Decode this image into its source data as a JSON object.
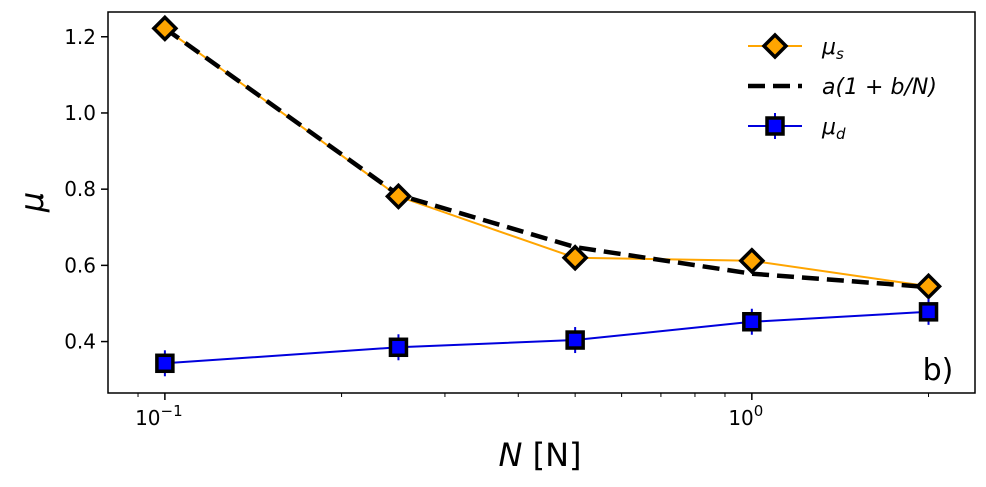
{
  "chart_data": {
    "type": "line",
    "x_scale": "log",
    "xlim": [
      0.08,
      2.4
    ],
    "ylim": [
      0.265,
      1.265
    ],
    "xlabel": "N [N]",
    "ylabel": "μ",
    "panel_label": "b)",
    "x_ticks": [
      {
        "value": 0.1,
        "base": "10",
        "exp": "−1"
      },
      {
        "value": 1.0,
        "base": "10",
        "exp": "0"
      }
    ],
    "y_ticks": [
      0.4,
      0.6,
      0.8,
      1.0,
      1.2
    ],
    "y_tick_labels": [
      "0.4",
      "0.6",
      "0.8",
      "1.0",
      "1.2"
    ],
    "legend_position": "top-right",
    "series": [
      {
        "name": "μs",
        "legend_label": "μ_s",
        "style": "line-diamond",
        "line_color": "#ffa500",
        "marker_fill": "#ffa500",
        "marker_edge": "#000000",
        "x": [
          0.1,
          0.25,
          0.5,
          1.0,
          2.0
        ],
        "y": [
          1.222,
          0.781,
          0.62,
          0.612,
          0.545
        ]
      },
      {
        "name": "a(1 + b/N)",
        "legend_label": "a(1 + b/N)",
        "style": "dashed",
        "line_color": "#000000",
        "x": [
          0.1,
          0.25,
          0.5,
          1.0,
          2.0
        ],
        "y": [
          1.222,
          0.785,
          0.648,
          0.578,
          0.543
        ]
      },
      {
        "name": "μd",
        "legend_label": "μ_d",
        "style": "line-square",
        "line_color": "#0000dd",
        "marker_fill": "#0000ff",
        "marker_edge": "#000000",
        "x": [
          0.1,
          0.25,
          0.5,
          1.0,
          2.0
        ],
        "y": [
          0.343,
          0.385,
          0.404,
          0.452,
          0.478
        ]
      }
    ]
  }
}
